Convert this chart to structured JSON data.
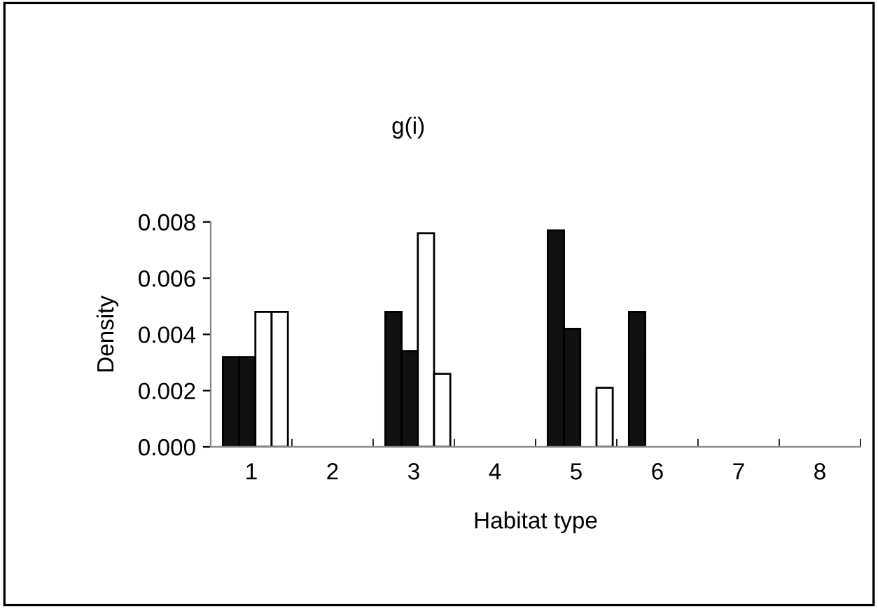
{
  "chart_data": {
    "type": "bar",
    "title": "g(i)",
    "xlabel": "Habitat type",
    "ylabel": "Density",
    "categories": [
      "1",
      "2",
      "3",
      "4",
      "5",
      "6",
      "7",
      "8"
    ],
    "series": [
      {
        "color": "#111111",
        "values": [
          0.0032,
          0,
          0.0048,
          0,
          0.0077,
          0.0048,
          0,
          0
        ]
      },
      {
        "color": "#111111",
        "values": [
          0.0032,
          0,
          0.0034,
          0,
          0.0042,
          0,
          0,
          0
        ]
      },
      {
        "color": "#ffffff",
        "values": [
          0.0048,
          0,
          0.0076,
          0,
          0,
          0,
          0,
          0
        ]
      },
      {
        "color": "#ffffff",
        "values": [
          0.0048,
          0,
          0.0026,
          0,
          0.0021,
          0,
          0,
          0
        ]
      }
    ],
    "ylim": [
      0,
      0.008
    ],
    "yticks": [
      {
        "value": 0,
        "label": "0.000"
      },
      {
        "value": 0.002,
        "label": "0.002"
      },
      {
        "value": 0.004,
        "label": "0.004"
      },
      {
        "value": 0.006,
        "label": "0.006"
      },
      {
        "value": 0.008,
        "label": "0.008"
      }
    ],
    "grid": false,
    "legend": false
  }
}
